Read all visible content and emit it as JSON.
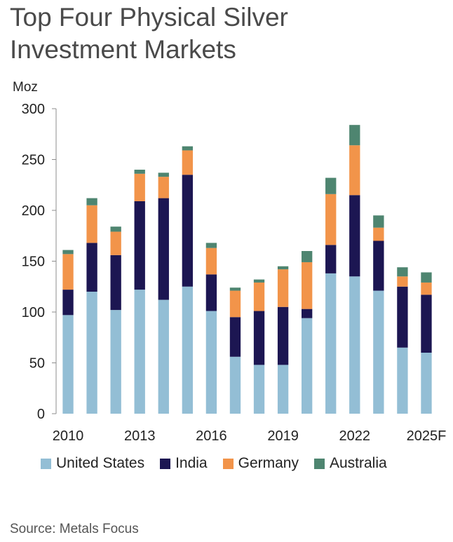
{
  "title_lines": [
    "Top Four Physical Silver",
    "Investment Markets"
  ],
  "source": "Source: Metals Focus",
  "colors": {
    "United States": "#93bed5",
    "India": "#1c1652",
    "Germany": "#f2944a",
    "Australia": "#4e8570"
  },
  "chart_data": {
    "type": "bar",
    "stacked": true,
    "ylabel": "Moz",
    "ylim": [
      0,
      300
    ],
    "yticks": [
      0,
      50,
      100,
      150,
      200,
      250,
      300
    ],
    "categories": [
      "2010",
      "2011",
      "2012",
      "2013",
      "2014",
      "2015",
      "2016",
      "2017",
      "2018",
      "2019",
      "2020",
      "2021",
      "2022",
      "2023",
      "2024",
      "2025F"
    ],
    "xtick_labels": [
      "2010",
      "",
      "",
      "2013",
      "",
      "",
      "2016",
      "",
      "",
      "2019",
      "",
      "",
      "2022",
      "",
      "",
      "2025F"
    ],
    "series": [
      {
        "name": "United States",
        "values": [
          97,
          120,
          102,
          122,
          112,
          125,
          101,
          56,
          48,
          48,
          94,
          138,
          135,
          121,
          65,
          60
        ]
      },
      {
        "name": "India",
        "values": [
          25,
          48,
          54,
          87,
          100,
          110,
          36,
          39,
          53,
          57,
          9,
          28,
          80,
          49,
          60,
          57
        ]
      },
      {
        "name": "Germany",
        "values": [
          35,
          37,
          23,
          27,
          21,
          24,
          26,
          26,
          28,
          37,
          46,
          50,
          49,
          13,
          10,
          12
        ]
      },
      {
        "name": "Australia",
        "values": [
          4,
          7,
          5,
          4,
          4,
          4,
          5,
          3,
          3,
          3,
          11,
          16,
          20,
          12,
          9,
          10
        ]
      }
    ],
    "legend_position": "bottom",
    "grid": false
  }
}
